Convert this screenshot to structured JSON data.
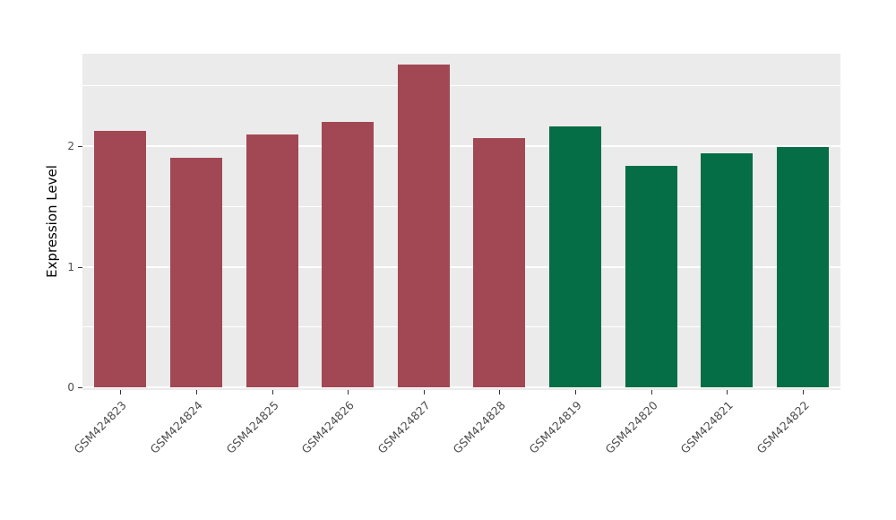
{
  "chart_data": {
    "type": "bar",
    "title": "",
    "xlabel": "",
    "ylabel": "Expression Level",
    "categories": [
      "GSM424823",
      "GSM424824",
      "GSM424825",
      "GSM424826",
      "GSM424827",
      "GSM424828",
      "GSM424819",
      "GSM424820",
      "GSM424821",
      "GSM424822"
    ],
    "values": [
      2.13,
      1.9,
      2.1,
      2.2,
      2.68,
      2.07,
      2.16,
      1.84,
      1.94,
      1.99
    ],
    "bar_colors": [
      "#A24854",
      "#A24854",
      "#A24854",
      "#A24854",
      "#A24854",
      "#A24854",
      "#056E46",
      "#056E46",
      "#056E46",
      "#056E46"
    ],
    "ylim": [
      0,
      2.77
    ],
    "yticks_major": [
      0,
      1,
      2
    ],
    "yticks_minor": [
      0.5,
      1.5,
      2.5
    ],
    "grid": "on",
    "legend_position": "none",
    "panel_background": "#EBEBEB",
    "gridline_color": "#FFFFFF"
  }
}
